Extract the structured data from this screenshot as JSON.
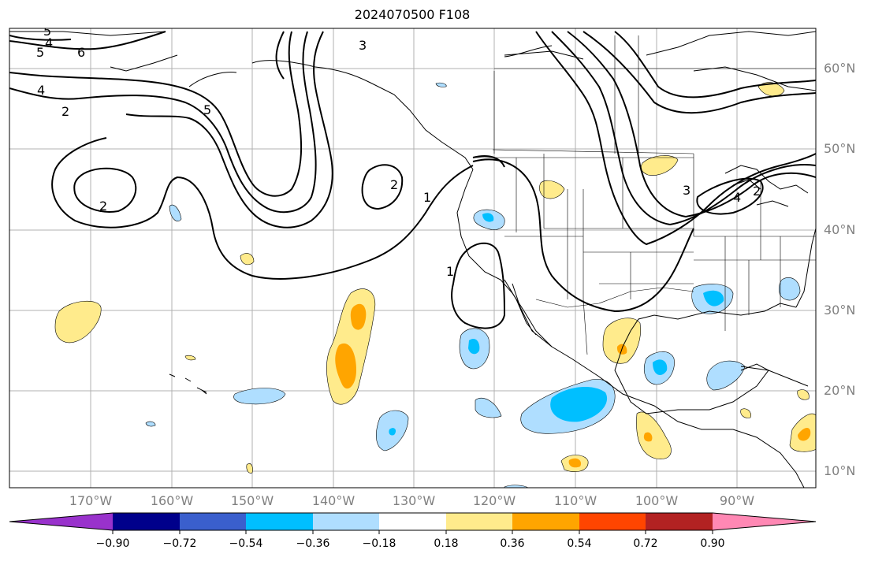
{
  "title": "2024070500 F108",
  "map_data": {
    "projection": "PlateCarree",
    "lon_range": [
      -180,
      -80
    ],
    "lat_range": [
      8,
      65
    ],
    "lat_labels": [
      "60°N",
      "50°N",
      "40°N",
      "30°N",
      "20°N",
      "10°N"
    ],
    "lon_labels": [
      "170°W",
      "160°W",
      "150°W",
      "140°W",
      "130°W",
      "120°W",
      "110°W",
      "100°W",
      "90°W"
    ],
    "contour_lines": "black solid, labeled 1–6",
    "contour_labels": [
      "5",
      "4",
      "5",
      "6",
      "4",
      "2",
      "3",
      "5",
      "2",
      "2",
      "1",
      "1",
      "3",
      "4",
      "2"
    ],
    "fill_anomaly_regions": [
      {
        "location": "central North Pacific near 139°W 25°N",
        "sign": "positive",
        "level": 0.54
      },
      {
        "location": "west Pacific near 172°W 29°N",
        "sign": "positive",
        "level": 0.18
      },
      {
        "location": "off Baja California near 122°W 23°N",
        "sign": "negative",
        "level": -0.36
      },
      {
        "location": "south of Mexico near 112°W 18°N",
        "sign": "negative",
        "level": -0.36
      },
      {
        "location": "Gulf of Mexico near 93°W 31°N",
        "sign": "negative",
        "level": -0.36
      },
      {
        "location": "western Mexico near 105°W 25°N",
        "sign": "positive",
        "level": 0.36
      },
      {
        "location": "Central America near 103°W 14°N",
        "sign": "positive",
        "level": 0.36
      }
    ]
  },
  "colorbar": {
    "levels": [
      -0.9,
      -0.72,
      -0.54,
      -0.36,
      -0.18,
      0.18,
      0.36,
      0.54,
      0.72,
      0.9
    ],
    "tick_labels": [
      "−0.90",
      "−0.72",
      "−0.54",
      "−0.36",
      "−0.18",
      "0.18",
      "0.36",
      "0.54",
      "0.72",
      "0.90"
    ],
    "colors": [
      "#9932cc",
      "#00008b",
      "#3a5fcd",
      "#00bfff",
      "#afdeff",
      "#ffffff",
      "#ffeb8c",
      "#ffa500",
      "#ff4500",
      "#b22222",
      "#ff88b4"
    ],
    "extend": "both"
  },
  "colors": {
    "grid": "#b0b0b0",
    "coast": "#000000",
    "contour": "#000000",
    "tick_label": "#808080"
  }
}
